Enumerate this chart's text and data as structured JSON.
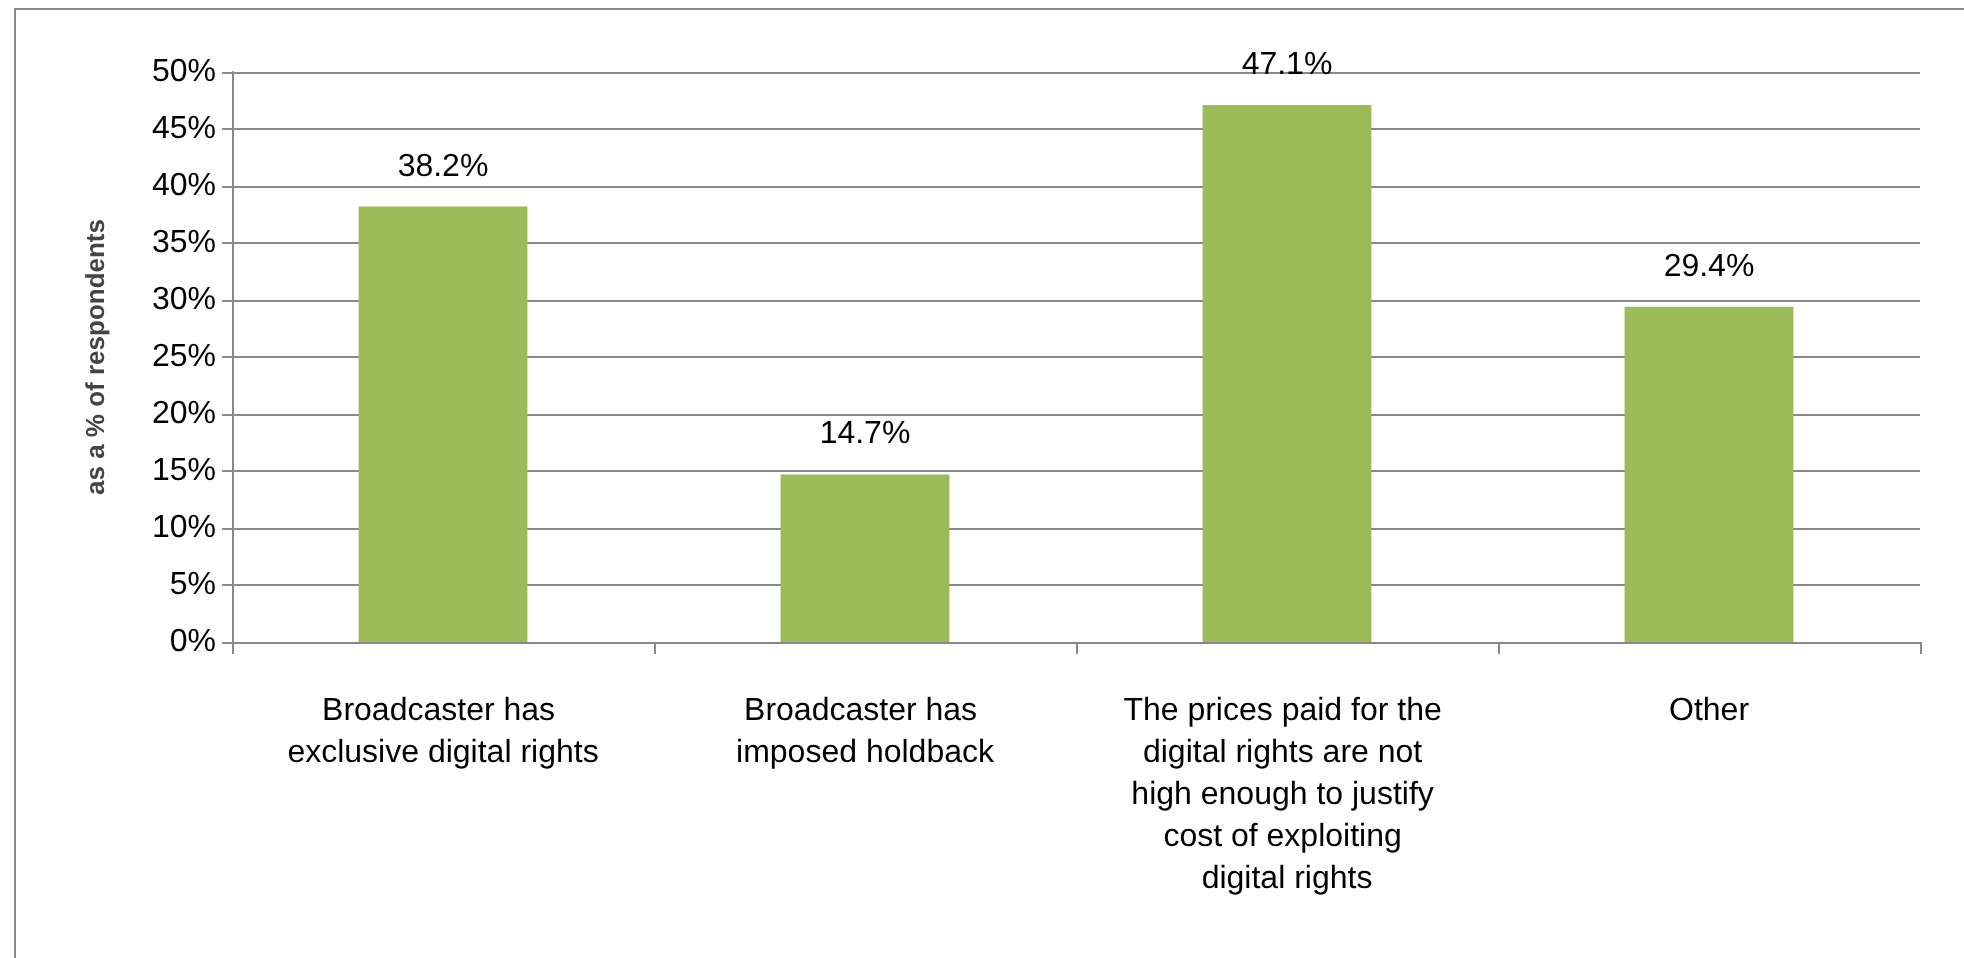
{
  "chart_data": {
    "type": "bar",
    "ylabel": "as a % of respondents",
    "categories": [
      "Broadcaster has exclusive digital rights",
      "Broadcaster has imposed holdback",
      "The prices paid for the digital rights are not high enough to justify cost of exploiting digital rights",
      "Other"
    ],
    "values": [
      38.2,
      14.7,
      47.1,
      29.4
    ],
    "value_labels": [
      "38.2%",
      "14.7%",
      "47.1%",
      "29.4%"
    ],
    "color": "#9bbb59",
    "ylim": [
      0,
      50
    ],
    "yticks": [
      {
        "value": 0,
        "label": "0%"
      },
      {
        "value": 5,
        "label": "5%"
      },
      {
        "value": 10,
        "label": "10%"
      },
      {
        "value": 15,
        "label": "15%"
      },
      {
        "value": 20,
        "label": "20%"
      },
      {
        "value": 25,
        "label": "25%"
      },
      {
        "value": 30,
        "label": "30%"
      },
      {
        "value": 35,
        "label": "35%"
      },
      {
        "value": 40,
        "label": "40%"
      },
      {
        "value": 45,
        "label": "45%"
      },
      {
        "value": 50,
        "label": "50%"
      }
    ],
    "grid": "y"
  }
}
